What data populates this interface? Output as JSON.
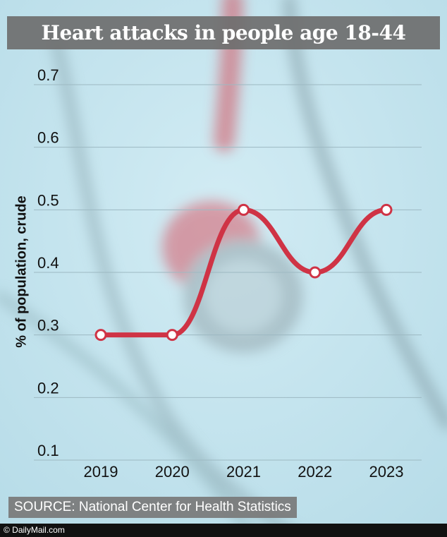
{
  "title": "Heart attacks in people age 18-44",
  "source": "SOURCE: National Center for Health Statistics",
  "brand": "© DailyMail.com",
  "colors": {
    "line": "#cf3345",
    "title_bg": "#6e6e6e",
    "background": "#c6e6f0",
    "grid": "#9db9c2"
  },
  "chart_data": {
    "type": "line",
    "title": "Heart attacks in people age 18-44",
    "xlabel": "",
    "ylabel": "% of population, crude",
    "categories": [
      "2019",
      "2020",
      "2021",
      "2022",
      "2023"
    ],
    "series": [
      {
        "values": [
          0.3,
          0.3,
          0.5,
          0.4,
          0.5
        ]
      }
    ],
    "ylim": [
      0.1,
      0.7
    ],
    "yticks": [
      "0.1",
      "0.2",
      "0.3",
      "0.4",
      "0.5",
      "0.6",
      "0.7"
    ],
    "grid": true,
    "legend": "none"
  }
}
